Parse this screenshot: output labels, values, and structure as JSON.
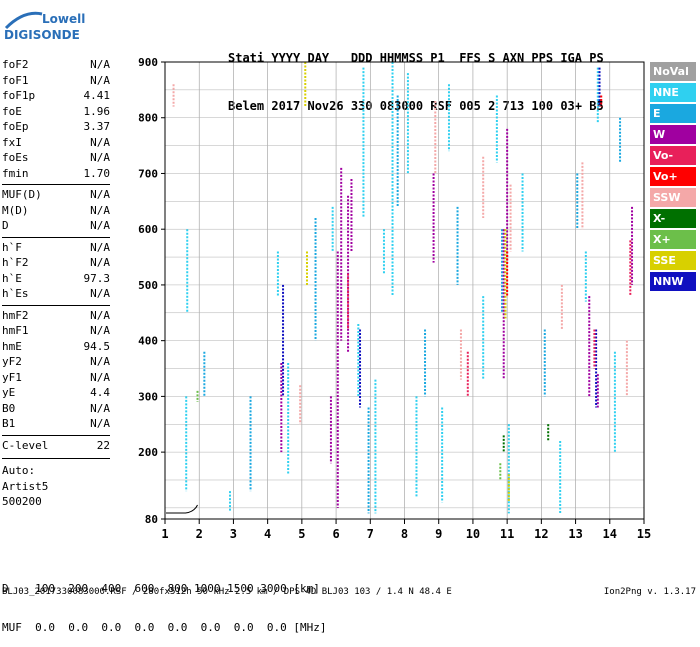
{
  "logo": {
    "line1": "Lowell",
    "line2": "DIGISONDE"
  },
  "header": {
    "line1": "Stati YYYY DAY   DDD HHMMSS P1  FFS S AXN PPS IGA PS",
    "line2": "Belem 2017 Nov26 330 083000 RSF 005 2 713 100 03+ B5"
  },
  "parameters": [
    {
      "name": "foF2",
      "value": "N/A"
    },
    {
      "name": "foF1",
      "value": "N/A"
    },
    {
      "name": "foF1p",
      "value": "4.41"
    },
    {
      "name": "foE",
      "value": "1.96"
    },
    {
      "name": "foEp",
      "value": "3.37"
    },
    {
      "name": "fxI",
      "value": "N/A"
    },
    {
      "name": "foEs",
      "value": "N/A"
    },
    {
      "name": "fmin",
      "value": "1.70"
    },
    {
      "name": "MUF(D)",
      "value": "N/A"
    },
    {
      "name": "M(D)",
      "value": "N/A"
    },
    {
      "name": "D",
      "value": "N/A"
    },
    {
      "name": "h`F",
      "value": "N/A"
    },
    {
      "name": "h`F2",
      "value": "N/A"
    },
    {
      "name": "h`E",
      "value": "97.3"
    },
    {
      "name": "h`Es",
      "value": "N/A"
    },
    {
      "name": "hmF2",
      "value": "N/A"
    },
    {
      "name": "hmF1",
      "value": "N/A"
    },
    {
      "name": "hmE",
      "value": "94.5"
    },
    {
      "name": "yF2",
      "value": "N/A"
    },
    {
      "name": "yF1",
      "value": "N/A"
    },
    {
      "name": "yE",
      "value": "4.4"
    },
    {
      "name": "B0",
      "value": "N/A"
    },
    {
      "name": "B1",
      "value": "N/A"
    },
    {
      "name": "C-level",
      "value": "22"
    }
  ],
  "autoscaling": {
    "line1": "Auto:",
    "line2": "Artist5",
    "line3": "500200"
  },
  "legend": [
    {
      "label": "NoVal",
      "color": "#a0a0a0"
    },
    {
      "label": "NNE",
      "color": "#2fd0f0"
    },
    {
      "label": "E",
      "color": "#1aa8e0"
    },
    {
      "label": "W",
      "color": "#a000a0"
    },
    {
      "label": "Vo-",
      "color": "#e8205a"
    },
    {
      "label": "Vo+",
      "color": "#ff0000"
    },
    {
      "label": "SSW",
      "color": "#f4a8a8"
    },
    {
      "label": "X-",
      "color": "#007000"
    },
    {
      "label": "X+",
      "color": "#6cbf4a"
    },
    {
      "label": "SSE",
      "color": "#d8d000"
    },
    {
      "label": "NNW",
      "color": "#1010c0"
    }
  ],
  "muf_table": {
    "d_row": "D    100  200  400  600  800 1000 1500 3000 [km]",
    "muf_row": "MUF  0.0  0.0  0.0  0.0  0.0  0.0  0.0  0.0 [MHz]"
  },
  "footer": "BLJ03_2017330083000.RSF / 280fx512h 50 kHz 2.5 km / DPS-4D BLJ03 103 / 1.4 N 48.4 E",
  "version": "Ion2Png v. 1.3.17",
  "chart_data": {
    "type": "scatter",
    "title": "",
    "xlabel": "",
    "ylabel": "",
    "xlim": [
      1,
      15
    ],
    "ylim": [
      80,
      900
    ],
    "x_ticks": [
      1,
      2,
      3,
      4,
      5,
      6,
      7,
      8,
      9,
      10,
      11,
      12,
      13,
      14,
      15
    ],
    "y_ticks": [
      80,
      200,
      300,
      400,
      500,
      600,
      700,
      800,
      900
    ],
    "grid": true,
    "series": [
      {
        "name": "NNE",
        "color": "#2fd0f0",
        "strips": [
          {
            "x": 1.62,
            "y0": 130,
            "y1": 300
          },
          {
            "x": 1.65,
            "y0": 450,
            "y1": 600
          },
          {
            "x": 2.9,
            "y0": 95,
            "y1": 130
          },
          {
            "x": 4.3,
            "y0": 480,
            "y1": 560
          },
          {
            "x": 4.6,
            "y0": 160,
            "y1": 360
          },
          {
            "x": 5.9,
            "y0": 560,
            "y1": 640
          },
          {
            "x": 6.65,
            "y0": 300,
            "y1": 430
          },
          {
            "x": 6.8,
            "y0": 620,
            "y1": 890
          },
          {
            "x": 7.15,
            "y0": 90,
            "y1": 330
          },
          {
            "x": 7.4,
            "y0": 520,
            "y1": 600
          },
          {
            "x": 7.65,
            "y0": 480,
            "y1": 900
          },
          {
            "x": 8.1,
            "y0": 700,
            "y1": 880
          },
          {
            "x": 8.35,
            "y0": 120,
            "y1": 300
          },
          {
            "x": 9.1,
            "y0": 110,
            "y1": 280
          },
          {
            "x": 9.3,
            "y0": 740,
            "y1": 860
          },
          {
            "x": 10.3,
            "y0": 330,
            "y1": 480
          },
          {
            "x": 10.7,
            "y0": 720,
            "y1": 840
          },
          {
            "x": 11.05,
            "y0": 90,
            "y1": 250
          },
          {
            "x": 11.45,
            "y0": 560,
            "y1": 700
          },
          {
            "x": 12.55,
            "y0": 90,
            "y1": 220
          },
          {
            "x": 13.3,
            "y0": 470,
            "y1": 560
          },
          {
            "x": 13.65,
            "y0": 790,
            "y1": 890
          },
          {
            "x": 14.15,
            "y0": 200,
            "y1": 380
          }
        ]
      },
      {
        "name": "E",
        "color": "#1aa8e0",
        "strips": [
          {
            "x": 2.15,
            "y0": 300,
            "y1": 380
          },
          {
            "x": 3.5,
            "y0": 130,
            "y1": 300
          },
          {
            "x": 5.4,
            "y0": 400,
            "y1": 620
          },
          {
            "x": 6.95,
            "y0": 90,
            "y1": 280
          },
          {
            "x": 7.8,
            "y0": 640,
            "y1": 840
          },
          {
            "x": 8.6,
            "y0": 300,
            "y1": 420
          },
          {
            "x": 9.55,
            "y0": 500,
            "y1": 640
          },
          {
            "x": 10.85,
            "y0": 450,
            "y1": 600
          },
          {
            "x": 12.1,
            "y0": 300,
            "y1": 420
          },
          {
            "x": 13.05,
            "y0": 600,
            "y1": 700
          },
          {
            "x": 14.3,
            "y0": 720,
            "y1": 800
          }
        ]
      },
      {
        "name": "W",
        "color": "#a000a0",
        "strips": [
          {
            "x": 4.4,
            "y0": 200,
            "y1": 360
          },
          {
            "x": 5.85,
            "y0": 180,
            "y1": 300
          },
          {
            "x": 6.05,
            "y0": 100,
            "y1": 560
          },
          {
            "x": 6.15,
            "y0": 400,
            "y1": 710
          },
          {
            "x": 6.35,
            "y0": 380,
            "y1": 660
          },
          {
            "x": 6.45,
            "y0": 560,
            "y1": 690
          },
          {
            "x": 8.85,
            "y0": 540,
            "y1": 700
          },
          {
            "x": 10.9,
            "y0": 330,
            "y1": 600
          },
          {
            "x": 11.0,
            "y0": 540,
            "y1": 780
          },
          {
            "x": 13.4,
            "y0": 300,
            "y1": 480
          },
          {
            "x": 13.65,
            "y0": 280,
            "y1": 340
          },
          {
            "x": 14.65,
            "y0": 500,
            "y1": 640
          }
        ]
      },
      {
        "name": "SSE",
        "color": "#d8d000",
        "strips": [
          {
            "x": 5.15,
            "y0": 500,
            "y1": 560
          },
          {
            "x": 5.1,
            "y0": 820,
            "y1": 900
          },
          {
            "x": 10.95,
            "y0": 440,
            "y1": 600
          },
          {
            "x": 11.05,
            "y0": 110,
            "y1": 160
          }
        ]
      },
      {
        "name": "NNW",
        "color": "#1010c0",
        "strips": [
          {
            "x": 4.45,
            "y0": 300,
            "y1": 500
          },
          {
            "x": 6.7,
            "y0": 280,
            "y1": 420
          },
          {
            "x": 13.6,
            "y0": 280,
            "y1": 420
          },
          {
            "x": 13.7,
            "y0": 820,
            "y1": 890
          }
        ]
      },
      {
        "name": "SSW",
        "color": "#f4a8a8",
        "strips": [
          {
            "x": 1.25,
            "y0": 820,
            "y1": 860
          },
          {
            "x": 4.95,
            "y0": 250,
            "y1": 320
          },
          {
            "x": 8.9,
            "y0": 700,
            "y1": 830
          },
          {
            "x": 9.65,
            "y0": 330,
            "y1": 420
          },
          {
            "x": 10.3,
            "y0": 620,
            "y1": 730
          },
          {
            "x": 11.1,
            "y0": 560,
            "y1": 680
          },
          {
            "x": 12.6,
            "y0": 420,
            "y1": 500
          },
          {
            "x": 13.2,
            "y0": 600,
            "y1": 720
          },
          {
            "x": 14.5,
            "y0": 300,
            "y1": 400
          }
        ]
      },
      {
        "name": "Vo-",
        "color": "#e8205a",
        "strips": [
          {
            "x": 6.35,
            "y0": 420,
            "y1": 520
          },
          {
            "x": 9.85,
            "y0": 300,
            "y1": 380
          },
          {
            "x": 13.55,
            "y0": 350,
            "y1": 420
          },
          {
            "x": 14.6,
            "y0": 480,
            "y1": 580
          }
        ]
      },
      {
        "name": "Vo+",
        "color": "#ff0000",
        "strips": [
          {
            "x": 11.0,
            "y0": 480,
            "y1": 560
          },
          {
            "x": 13.75,
            "y0": 820,
            "y1": 840
          }
        ]
      },
      {
        "name": "X-",
        "color": "#007000",
        "strips": [
          {
            "x": 10.9,
            "y0": 200,
            "y1": 230
          },
          {
            "x": 12.2,
            "y0": 220,
            "y1": 250
          }
        ]
      },
      {
        "name": "X+",
        "color": "#6cbf4a",
        "strips": [
          {
            "x": 1.95,
            "y0": 290,
            "y1": 310
          },
          {
            "x": 10.8,
            "y0": 150,
            "y1": 180
          }
        ]
      }
    ]
  }
}
